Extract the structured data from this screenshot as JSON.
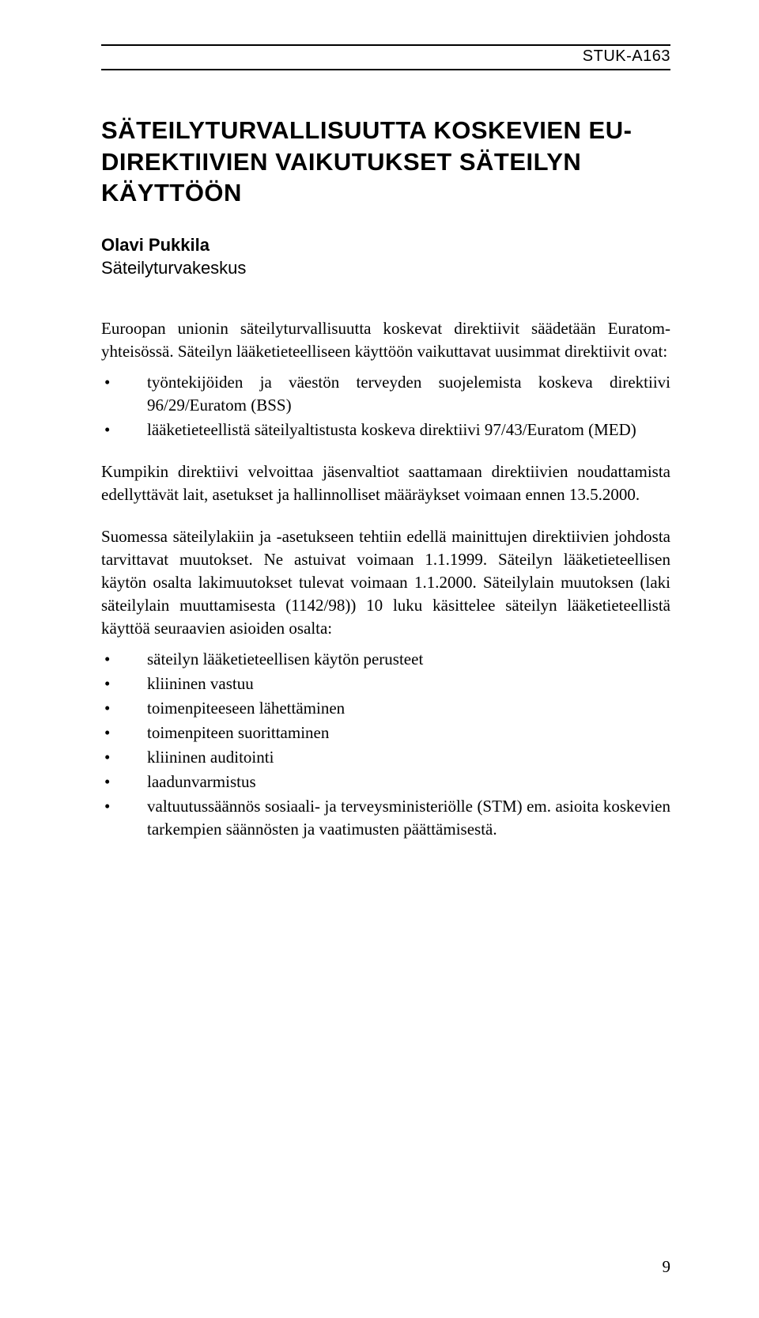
{
  "header": {
    "code": "STUK-A163"
  },
  "title": "SÄTEILYTURVALLISUUTTA KOSKEVIEN EU-DIREKTIIVIEN VAIKUTUKSET SÄTEILYN KÄYTTÖÖN",
  "author": "Olavi Pukkila",
  "affiliation": "Säteilyturvakeskus",
  "p1": "Euroopan unionin säteilyturvallisuutta koskevat direktiivit säädetään Euratom-yhteisössä. Säteilyn lääketieteelliseen käyttöön vaikuttavat uusimmat direktiivit ovat:",
  "list1": [
    "työntekijöiden ja väestön terveyden suojelemista koskeva direktiivi 96/29/Euratom (BSS)",
    "lääketieteellistä säteilyaltistusta koskeva direktiivi 97/43/Euratom (MED)"
  ],
  "p2": "Kumpikin direktiivi velvoittaa jäsenvaltiot saattamaan direktiivien noudattamista edellyttävät lait, asetukset ja hallinnolliset määräykset voimaan ennen 13.5.2000.",
  "p3": "Suomessa säteilylakiin ja -asetukseen tehtiin edellä mainittujen direktiivien johdosta tarvittavat muutokset. Ne astuivat voimaan 1.1.1999. Säteilyn lääketieteellisen käytön osalta lakimuutokset tulevat voimaan 1.1.2000. Säteilylain muutoksen (laki säteilylain muuttamisesta (1142/98)) 10 luku käsittelee säteilyn lääketieteellistä käyttöä seuraavien asioiden osalta:",
  "list2": [
    "säteilyn lääketieteellisen käytön perusteet",
    "kliininen vastuu",
    "toimenpiteeseen lähettäminen",
    "toimenpiteen suorittaminen",
    "kliininen auditointi",
    "laadunvarmistus",
    "valtuutussäännös sosiaali- ja terveysministeriölle (STM) em. asioita koskevien tarkempien säännösten ja vaatimusten päättämisestä."
  ],
  "page_number": "9"
}
